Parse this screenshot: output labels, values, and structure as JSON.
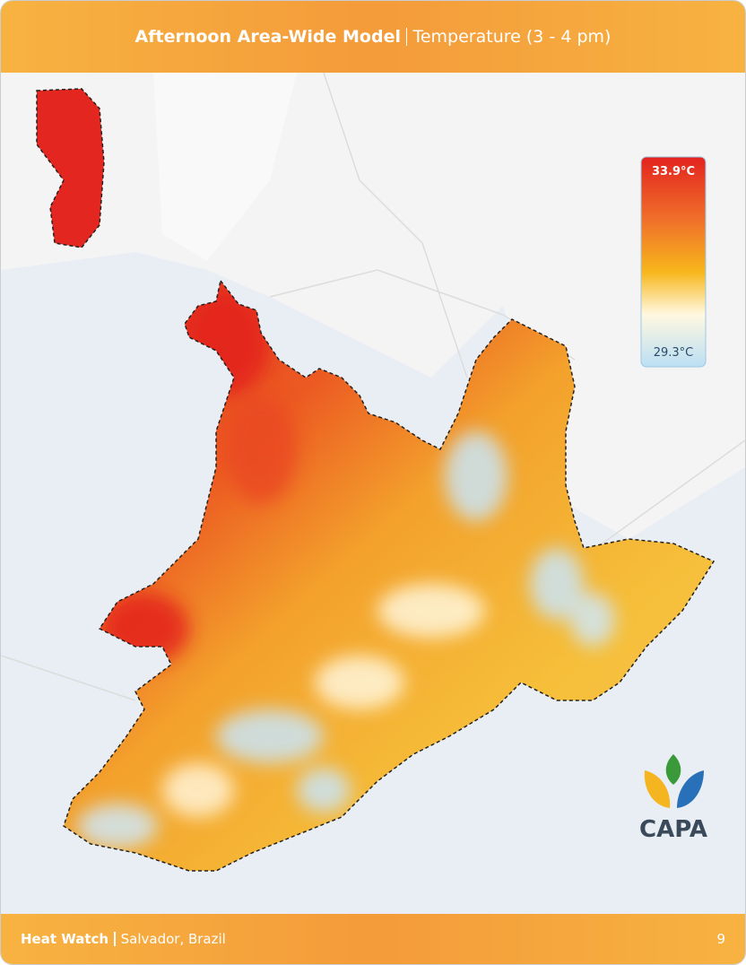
{
  "header": {
    "title_bold": "Afternoon Area-Wide Model",
    "title_rest": "Temperature (3 - 4 pm)"
  },
  "legend": {
    "max": "33.9°C",
    "min": "29.3°C"
  },
  "logo": {
    "text": "CAPA"
  },
  "footer": {
    "title_bold": "Heat Watch",
    "title_rest": "Salvador, Brazil",
    "page": "9"
  }
}
